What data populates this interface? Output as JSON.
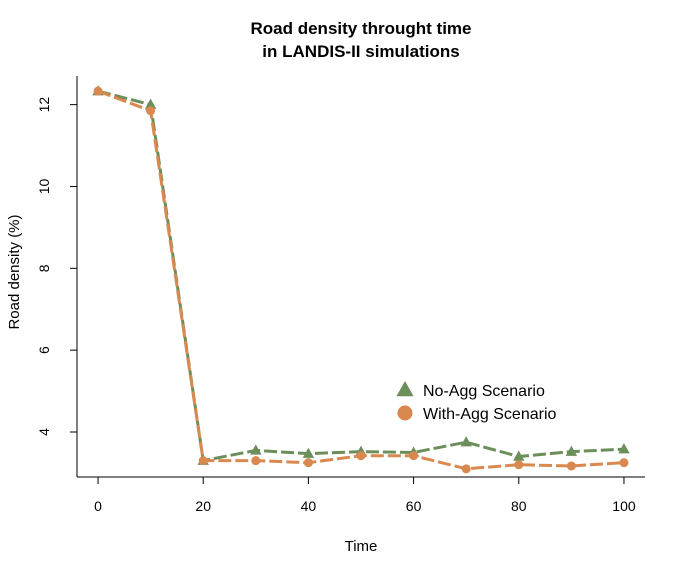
{
  "chart_data": {
    "type": "line",
    "title_line1": "Road density throught time",
    "title_line2": "in LANDIS-II simulations",
    "xlabel": "Time",
    "ylabel": "Road density (%)",
    "x": [
      0,
      10,
      20,
      30,
      40,
      50,
      60,
      70,
      80,
      90,
      100
    ],
    "xlim": [
      -4,
      104
    ],
    "ylim": [
      2.9,
      12.7
    ],
    "x_ticks": [
      0,
      20,
      40,
      60,
      80,
      100
    ],
    "y_ticks": [
      4,
      6,
      8,
      10,
      12
    ],
    "series": [
      {
        "name": "No-Agg Scenario",
        "color": "#6b8e5a",
        "marker": "triangle",
        "values": [
          12.33,
          12.0,
          3.3,
          3.55,
          3.47,
          3.52,
          3.5,
          3.75,
          3.4,
          3.52,
          3.58
        ]
      },
      {
        "name": "With-Agg Scenario",
        "color": "#d9894f",
        "marker": "circle",
        "values": [
          12.33,
          11.85,
          3.3,
          3.3,
          3.25,
          3.42,
          3.42,
          3.1,
          3.2,
          3.17,
          3.25
        ]
      }
    ],
    "legend_position": "bottom-right",
    "grid": false
  }
}
